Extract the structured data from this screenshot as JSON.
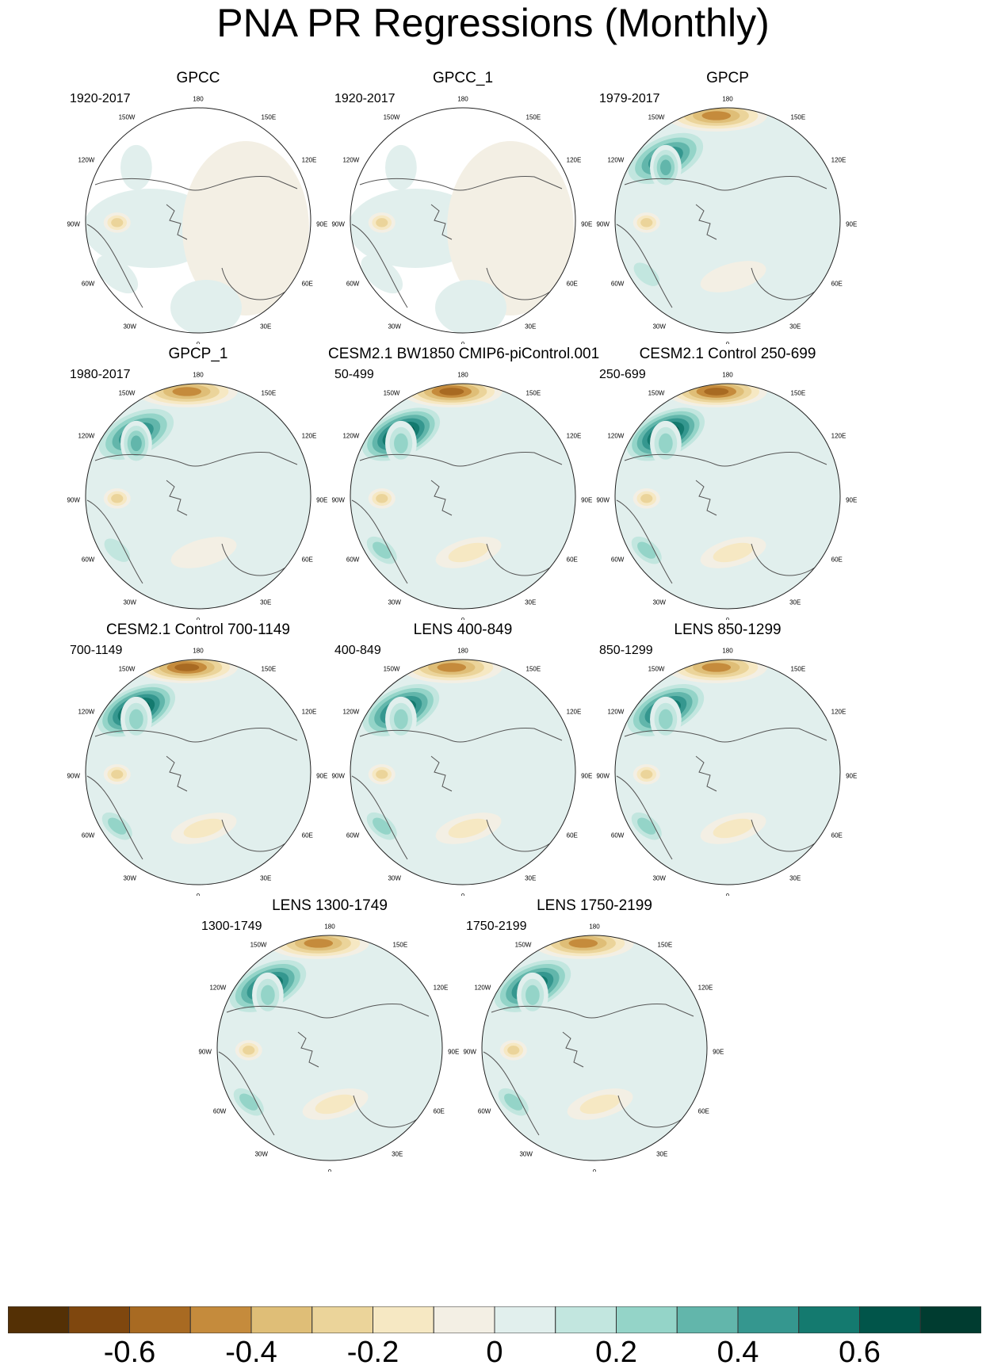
{
  "figure": {
    "title": "PNA PR Regressions (Monthly)"
  },
  "chart_data": {
    "type": "contour-map",
    "projection": "north polar stereographic",
    "variable": "PR regression on PNA index (monthly)",
    "longitude_labels": [
      "180",
      "150E",
      "120E",
      "90E",
      "60E",
      "30E",
      "0",
      "30W",
      "60W",
      "90W",
      "120W",
      "150W"
    ],
    "panels": [
      {
        "title": "GPCC",
        "period": "1920-2017",
        "land_only": true,
        "features": {
          "ne_pacific_wet": 0.0,
          "aleutian_dry": 0.0,
          "coast_wet": 0.1,
          "interior_dry": -0.25,
          "se_us_wet": 0.1,
          "atlantic_dry": 0.0
        }
      },
      {
        "title": "GPCC_1",
        "period": "1920-2017",
        "land_only": true,
        "features": {
          "ne_pacific_wet": 0.0,
          "aleutian_dry": 0.0,
          "coast_wet": 0.1,
          "interior_dry": -0.25,
          "se_us_wet": 0.1,
          "atlantic_dry": 0.0
        }
      },
      {
        "title": "GPCP",
        "period": "1979-2017",
        "land_only": false,
        "features": {
          "ne_pacific_wet": 0.55,
          "aleutian_dry": -0.45,
          "coast_wet": 0.4,
          "interior_dry": -0.25,
          "se_us_wet": 0.2,
          "atlantic_dry": -0.1
        }
      },
      {
        "title": "GPCP_1",
        "period": "1980-2017",
        "land_only": false,
        "features": {
          "ne_pacific_wet": 0.55,
          "aleutian_dry": -0.45,
          "coast_wet": 0.4,
          "interior_dry": -0.25,
          "se_us_wet": 0.2,
          "atlantic_dry": -0.1
        }
      },
      {
        "title": "CESM2.1 BW1850 CMIP6-piControl.001",
        "period": "50-499",
        "land_only": false,
        "features": {
          "ne_pacific_wet": 0.75,
          "aleutian_dry": -0.55,
          "coast_wet": 0.35,
          "interior_dry": -0.25,
          "se_us_wet": 0.3,
          "atlantic_dry": -0.2
        }
      },
      {
        "title": "CESM2.1 Control 250-699",
        "period": "250-699",
        "land_only": false,
        "features": {
          "ne_pacific_wet": 0.75,
          "aleutian_dry": -0.55,
          "coast_wet": 0.35,
          "interior_dry": -0.25,
          "se_us_wet": 0.3,
          "atlantic_dry": -0.2
        }
      },
      {
        "title": "CESM2.1 Control 700-1149",
        "period": "700-1149",
        "land_only": false,
        "features": {
          "ne_pacific_wet": 0.75,
          "aleutian_dry": -0.55,
          "coast_wet": 0.35,
          "interior_dry": -0.25,
          "se_us_wet": 0.3,
          "atlantic_dry": -0.2
        }
      },
      {
        "title": "LENS 400-849",
        "period": "400-849",
        "land_only": false,
        "features": {
          "ne_pacific_wet": 0.65,
          "aleutian_dry": -0.45,
          "coast_wet": 0.35,
          "interior_dry": -0.25,
          "se_us_wet": 0.25,
          "atlantic_dry": -0.2
        }
      },
      {
        "title": "LENS 850-1299",
        "period": "850-1299",
        "land_only": false,
        "features": {
          "ne_pacific_wet": 0.65,
          "aleutian_dry": -0.45,
          "coast_wet": 0.35,
          "interior_dry": -0.25,
          "se_us_wet": 0.25,
          "atlantic_dry": -0.2
        }
      },
      {
        "title": "LENS 1300-1749",
        "period": "1300-1749",
        "land_only": false,
        "features": {
          "ne_pacific_wet": 0.65,
          "aleutian_dry": -0.45,
          "coast_wet": 0.35,
          "interior_dry": -0.25,
          "se_us_wet": 0.25,
          "atlantic_dry": -0.2
        }
      },
      {
        "title": "LENS 1750-2199",
        "period": "1750-2199",
        "land_only": false,
        "features": {
          "ne_pacific_wet": 0.65,
          "aleutian_dry": -0.45,
          "coast_wet": 0.35,
          "interior_dry": -0.25,
          "se_us_wet": 0.25,
          "atlantic_dry": -0.2
        }
      }
    ],
    "colorbar": {
      "bounds": [
        -0.7,
        -0.6,
        -0.5,
        -0.4,
        -0.3,
        -0.2,
        -0.1,
        0,
        0.1,
        0.2,
        0.3,
        0.4,
        0.5,
        0.6,
        0.7
      ],
      "labels": [
        "-0.6",
        "-0.4",
        "-0.2",
        "0",
        "0.2",
        "0.4",
        "0.6"
      ],
      "colors": [
        "#543005",
        "#7f470e",
        "#a86a22",
        "#c58b3c",
        "#dfbe77",
        "#ebd49a",
        "#f6e8c3",
        "#f3efe4",
        "#e1efed",
        "#c2e6df",
        "#94d4c8",
        "#62b6ab",
        "#35978f",
        "#147a6f",
        "#01554a",
        "#003c30"
      ]
    }
  }
}
